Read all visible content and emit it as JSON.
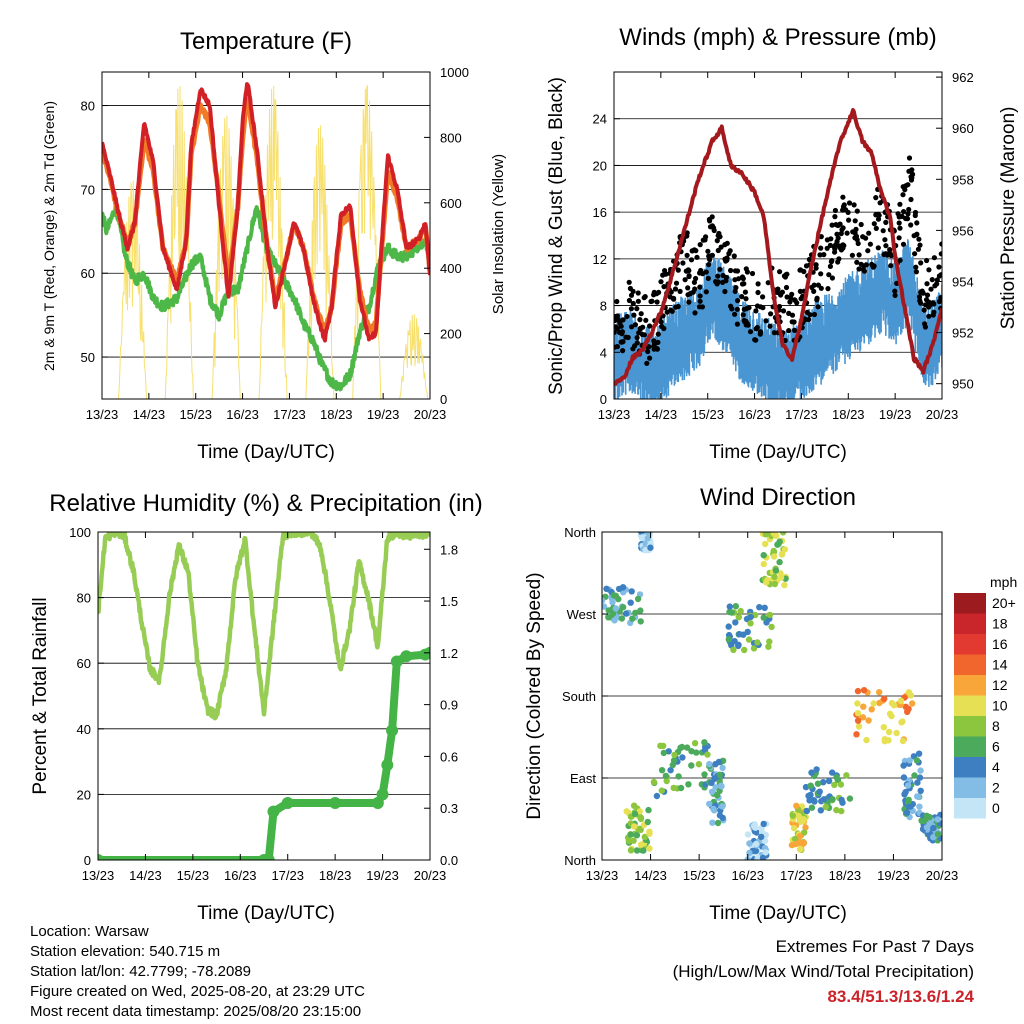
{
  "colors": {
    "temp_red": "#d22027",
    "temp_orange": "#f07a25",
    "dewpoint_green": "#4db848",
    "solar_yellow": "#f7e06e",
    "gust_black": "#000000",
    "wind_blue": "#4a96d2",
    "pressure_maroon": "#a3191e",
    "rh_light_green": "#98cd55",
    "rain_green": "#44b446"
  },
  "info": {
    "location": "Location: Warsaw",
    "elevation": "Station elevation: 540.715 m",
    "latlon": "Station lat/lon: 42.7799; -78.2089",
    "created": "Figure created on Wed, 2025-08-20, at 23:29 UTC",
    "timestamp": "Most recent data timestamp: 2025/08/20 23:15:00"
  },
  "extremes": {
    "line1": "Extremes For Past 7 Days",
    "line2": "(High/Low/Max Wind/Total Precipitation)",
    "values": "83.4/51.3/13.6/1.24"
  },
  "chart_data": [
    {
      "type": "line",
      "title": "Temperature (F)",
      "xlabel": "Time (Day/UTC)",
      "ylabel": "2m & 9m T (Red, Orange) & 2m Td (Green)",
      "ylabel_right": "Solar Insolation (Yellow)",
      "x_ticks": [
        "13/23",
        "14/23",
        "15/23",
        "16/23",
        "17/23",
        "18/23",
        "19/23",
        "20/23"
      ],
      "ylim": [
        45,
        84
      ],
      "y_ticks": [
        50,
        60,
        70,
        80
      ],
      "ylim_right": [
        0,
        1000
      ],
      "y_ticks_right": [
        0,
        200,
        400,
        600,
        800,
        1000
      ],
      "series": [
        {
          "name": "2m T",
          "color": "#d22027",
          "x": [
            0,
            0.2,
            0.4,
            0.55,
            0.7,
            0.9,
            1.1,
            1.3,
            1.6,
            1.8,
            1.9,
            2.1,
            2.3,
            2.5,
            2.7,
            2.9,
            3.0,
            3.1,
            3.3,
            3.55,
            3.7,
            3.9,
            4.1,
            4.3,
            4.5,
            4.6,
            4.75,
            4.9,
            5.1,
            5.3,
            5.5,
            5.7,
            5.85,
            6.0,
            6.1,
            6.3,
            6.5,
            6.75,
            6.9,
            7.0
          ],
          "y": [
            75.5,
            71,
            66,
            63,
            66,
            78,
            73,
            63,
            58,
            64,
            75,
            82,
            80,
            68,
            57,
            68,
            78,
            83,
            75,
            62,
            56,
            61,
            66,
            63,
            57,
            55,
            52,
            56,
            67,
            68,
            57,
            52,
            53,
            66,
            74,
            70,
            63,
            64,
            66,
            60
          ]
        },
        {
          "name": "9m T",
          "color": "#f07a25",
          "x": [
            0,
            0.2,
            0.4,
            0.55,
            0.7,
            0.9,
            1.1,
            1.3,
            1.6,
            1.8,
            1.9,
            2.1,
            2.3,
            2.5,
            2.7,
            2.9,
            3.0,
            3.1,
            3.3,
            3.55,
            3.7,
            3.9,
            4.1,
            4.3,
            4.5,
            4.6,
            4.75,
            4.9,
            5.1,
            5.3,
            5.5,
            5.7,
            5.85,
            6.0,
            6.1,
            6.3,
            6.5,
            6.75,
            6.9,
            7.0
          ],
          "y": [
            75,
            70.5,
            66,
            63.5,
            66,
            76,
            72,
            63,
            59,
            64,
            74,
            80,
            78,
            69,
            59,
            68,
            76,
            81,
            74,
            62,
            57,
            61,
            66,
            63,
            57.5,
            55.5,
            53,
            56,
            66,
            67,
            58,
            53,
            54,
            65,
            72,
            69,
            63,
            64,
            65.5,
            60.5
          ]
        },
        {
          "name": "2m Td",
          "color": "#4db848",
          "x": [
            0,
            0.1,
            0.3,
            0.5,
            0.7,
            0.9,
            1.1,
            1.3,
            1.6,
            1.9,
            2.1,
            2.3,
            2.5,
            2.7,
            2.9,
            3.1,
            3.3,
            3.5,
            3.8,
            4.1,
            4.3,
            4.5,
            4.7,
            4.9,
            5.1,
            5.3,
            5.5,
            5.7,
            5.9,
            6.1,
            6.3,
            6.5,
            6.7,
            6.9,
            7.0
          ],
          "y": [
            67,
            65,
            68,
            62,
            59,
            60,
            57,
            56,
            57,
            61,
            62,
            57,
            55,
            58,
            58,
            63,
            68,
            63,
            60,
            57,
            54,
            52,
            49,
            47,
            46.5,
            48,
            53,
            56,
            61,
            63,
            62,
            62,
            63,
            64,
            61
          ]
        },
        {
          "name": "Solar Insolation",
          "color": "#f7e06e",
          "axis": "right",
          "days": [
            0,
            1,
            2,
            3,
            4,
            5,
            6
          ],
          "peaks": [
            670,
            960,
            870,
            960,
            840,
            960,
            260
          ]
        }
      ]
    },
    {
      "type": "line",
      "title": "Winds (mph) & Pressure (mb)",
      "xlabel": "Time (Day/UTC)",
      "ylabel": "Sonic/Prop Wind & Gust (Blue, Black)",
      "ylabel_right": "Station Pressure (Maroon)",
      "x_ticks": [
        "13/23",
        "14/23",
        "15/23",
        "16/23",
        "17/23",
        "18/23",
        "19/23",
        "20/23"
      ],
      "ylim": [
        0,
        28
      ],
      "y_ticks": [
        0,
        4,
        8,
        12,
        16,
        20,
        24
      ],
      "ylim_right": [
        949.4,
        962.2
      ],
      "y_ticks_right": [
        950,
        952,
        954,
        956,
        958,
        960,
        962
      ],
      "series": [
        {
          "name": "Sonic/Prop Wind",
          "color": "#4a96d2",
          "x": [
            0,
            0.3,
            0.6,
            0.9,
            1.2,
            1.5,
            1.8,
            2.1,
            2.4,
            2.7,
            3.0,
            3.3,
            3.6,
            3.9,
            4.2,
            4.5,
            4.8,
            5.1,
            5.4,
            5.7,
            6.0,
            6.3,
            6.6,
            6.9,
            7.0
          ],
          "y": [
            4,
            5,
            4,
            3,
            5,
            6,
            7,
            10,
            8,
            6,
            5,
            4,
            3,
            4,
            5,
            6,
            7,
            8,
            9,
            10,
            9,
            11,
            5,
            6,
            7
          ]
        },
        {
          "name": "Gust",
          "color": "#000000",
          "x": [
            0,
            0.3,
            0.6,
            0.9,
            1.2,
            1.5,
            1.8,
            2.1,
            2.4,
            2.7,
            3.0,
            3.3,
            3.6,
            3.9,
            4.2,
            4.5,
            4.8,
            5.1,
            5.4,
            5.7,
            6.0,
            6.3,
            6.6,
            6.9,
            7.0
          ],
          "y": [
            6,
            8,
            6,
            7,
            10,
            12,
            10,
            14,
            11,
            9,
            8,
            9,
            8,
            8,
            10,
            12,
            15,
            14,
            13,
            16,
            12,
            19,
            9,
            10,
            11
          ]
        },
        {
          "name": "Station Pressure",
          "color": "#a3191e",
          "axis": "right",
          "x": [
            0,
            0.2,
            0.4,
            0.6,
            0.8,
            1.0,
            1.2,
            1.5,
            1.8,
            2.1,
            2.3,
            2.5,
            2.7,
            3.0,
            3.2,
            3.4,
            3.6,
            3.8,
            4.0,
            4.2,
            4.5,
            4.8,
            5.1,
            5.3,
            5.5,
            5.7,
            5.9,
            6.0,
            6.2,
            6.4,
            6.6,
            6.8,
            7.0
          ],
          "y": [
            950,
            950.2,
            951,
            951.3,
            952,
            952.8,
            954,
            956,
            958,
            959.5,
            960,
            958.5,
            958.3,
            957.5,
            956.5,
            953.5,
            951.5,
            951,
            952.5,
            954.5,
            957,
            959.3,
            960.7,
            959.5,
            959,
            957.5,
            956.5,
            955,
            953,
            951,
            950.5,
            951.5,
            953
          ]
        }
      ]
    },
    {
      "type": "line",
      "title": "Relative Humidity (%) & Precipitation (in)",
      "xlabel": "Time (Day/UTC)",
      "ylabel": "Percent & Total Rainfall",
      "x_ticks": [
        "13/23",
        "14/23",
        "15/23",
        "16/23",
        "17/23",
        "18/23",
        "19/23",
        "20/23"
      ],
      "ylim": [
        0,
        100
      ],
      "y_ticks": [
        0,
        20,
        40,
        60,
        80,
        100
      ],
      "ylim_right": [
        0,
        1.9
      ],
      "y_ticks_right": [
        "0.0",
        "0.3",
        "0.6",
        "0.9",
        "1.2",
        "1.5",
        "1.8"
      ],
      "series": [
        {
          "name": "Relative Humidity",
          "color": "#98cd55",
          "x": [
            0,
            0.15,
            0.35,
            0.55,
            0.75,
            0.95,
            1.1,
            1.3,
            1.5,
            1.7,
            1.9,
            2.1,
            2.3,
            2.5,
            2.7,
            2.9,
            3.1,
            3.3,
            3.5,
            3.7,
            3.9,
            4.1,
            4.3,
            4.5,
            4.7,
            4.9,
            5.1,
            5.3,
            5.5,
            5.7,
            5.9,
            6.1,
            6.3,
            6.5,
            6.7,
            7.0
          ],
          "y": [
            75,
            98,
            100,
            99,
            88,
            70,
            58,
            55,
            80,
            96,
            88,
            60,
            46,
            44,
            58,
            86,
            98,
            70,
            45,
            72,
            99,
            100,
            100,
            100,
            95,
            78,
            58,
            70,
            91,
            80,
            65,
            98,
            100,
            99,
            99,
            100
          ]
        },
        {
          "name": "Total Rainfall",
          "color": "#44b446",
          "axis": "right",
          "x": [
            0,
            3.5,
            3.6,
            3.7,
            4.0,
            5.0,
            5.9,
            6.0,
            6.1,
            6.2,
            6.3,
            6.5,
            6.9,
            7.0
          ],
          "y": [
            0,
            0,
            0,
            0.28,
            0.33,
            0.33,
            0.33,
            0.38,
            0.55,
            0.75,
            1.15,
            1.18,
            1.19,
            1.2
          ]
        }
      ]
    },
    {
      "type": "scatter",
      "title": "Wind Direction",
      "xlabel": "Time (Day/UTC)",
      "ylabel": "Direction (Colored By Speed)",
      "x_ticks": [
        "13/23",
        "14/23",
        "15/23",
        "16/23",
        "17/23",
        "18/23",
        "19/23",
        "20/23"
      ],
      "y_ticks": [
        "North",
        "East",
        "South",
        "West",
        "North"
      ],
      "ylim": [
        0,
        360
      ],
      "legend": {
        "title": "mph",
        "labels": [
          "20+",
          "18",
          "16",
          "14",
          "12",
          "10",
          "8",
          "6",
          "4",
          "2",
          "0"
        ],
        "colors": [
          "#9b1b1e",
          "#c9262c",
          "#e23a30",
          "#f1662c",
          "#f8a63a",
          "#e6e154",
          "#8cc63f",
          "#4caa5c",
          "#3d7fc0",
          "#83bde6",
          "#c4e5f6"
        ]
      },
      "clusters": [
        {
          "x": [
            0,
            0.8
          ],
          "dir": [
            260,
            300
          ],
          "speed": 4
        },
        {
          "x": [
            0.8,
            1.0
          ],
          "dir": [
            340,
            360
          ],
          "speed": 2
        },
        {
          "x": [
            0.5,
            1.0
          ],
          "dir": [
            10,
            60
          ],
          "speed": 8
        },
        {
          "x": [
            1.0,
            2.2
          ],
          "dir": [
            70,
            130
          ],
          "speed": 6
        },
        {
          "x": [
            2.2,
            2.5
          ],
          "dir": [
            40,
            110
          ],
          "speed": 4
        },
        {
          "x": [
            2.6,
            3.5
          ],
          "dir": [
            230,
            280
          ],
          "speed": 6
        },
        {
          "x": [
            3.3,
            3.8
          ],
          "dir": [
            300,
            360
          ],
          "speed": 8
        },
        {
          "x": [
            3.0,
            3.4
          ],
          "dir": [
            0,
            40
          ],
          "speed": 2
        },
        {
          "x": [
            3.9,
            4.2
          ],
          "dir": [
            10,
            60
          ],
          "speed": 10
        },
        {
          "x": [
            4.2,
            5.2
          ],
          "dir": [
            50,
            100
          ],
          "speed": 6
        },
        {
          "x": [
            5.2,
            6.4
          ],
          "dir": [
            130,
            190
          ],
          "speed": 12
        },
        {
          "x": [
            6.2,
            6.6
          ],
          "dir": [
            40,
            120
          ],
          "speed": 4
        },
        {
          "x": [
            6.6,
            7.0
          ],
          "dir": [
            20,
            50
          ],
          "speed": 4
        }
      ]
    }
  ]
}
